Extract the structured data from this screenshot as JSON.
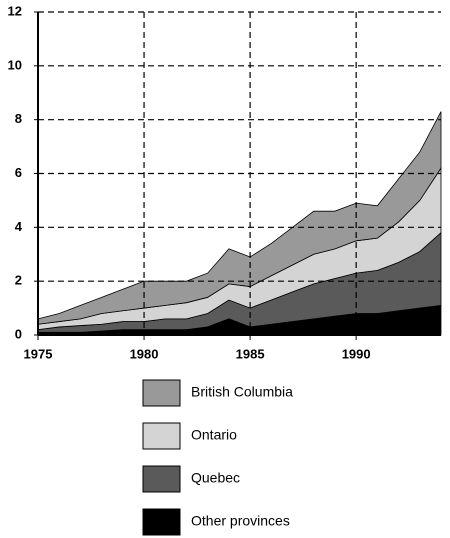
{
  "chart_data": {
    "type": "stacked-area",
    "x": [
      1975,
      1976,
      1977,
      1978,
      1979,
      1980,
      1981,
      1982,
      1983,
      1984,
      1985,
      1986,
      1987,
      1988,
      1989,
      1990,
      1991,
      1992,
      1993,
      1994
    ],
    "series": [
      {
        "name": "Other provinces",
        "color": "#000000",
        "values": [
          0.1,
          0.1,
          0.1,
          0.15,
          0.2,
          0.2,
          0.2,
          0.2,
          0.3,
          0.6,
          0.3,
          0.4,
          0.5,
          0.6,
          0.7,
          0.8,
          0.8,
          0.9,
          1.0,
          1.1
        ]
      },
      {
        "name": "Quebec",
        "color": "#5a5a5a",
        "values": [
          0.1,
          0.2,
          0.25,
          0.25,
          0.3,
          0.3,
          0.4,
          0.4,
          0.5,
          0.7,
          0.7,
          0.9,
          1.1,
          1.3,
          1.4,
          1.5,
          1.6,
          1.8,
          2.1,
          2.7
        ]
      },
      {
        "name": "Ontario",
        "color": "#d4d4d4",
        "values": [
          0.2,
          0.2,
          0.25,
          0.4,
          0.4,
          0.5,
          0.5,
          0.6,
          0.6,
          0.6,
          0.8,
          0.9,
          1.0,
          1.1,
          1.1,
          1.2,
          1.2,
          1.5,
          1.9,
          2.4
        ]
      },
      {
        "name": "British Columbia",
        "color": "#999999",
        "values": [
          0.2,
          0.3,
          0.5,
          0.6,
          0.8,
          1.0,
          0.9,
          0.8,
          0.9,
          1.3,
          1.1,
          1.2,
          1.4,
          1.6,
          1.4,
          1.4,
          1.2,
          1.6,
          1.8,
          2.1
        ]
      }
    ],
    "xlim": [
      1975,
      1994
    ],
    "xticks": [
      1975,
      1980,
      1985,
      1990
    ],
    "ylim": [
      0,
      12
    ],
    "yticks": [
      0,
      2,
      4,
      6,
      8,
      10,
      12
    ],
    "grid": true
  }
}
